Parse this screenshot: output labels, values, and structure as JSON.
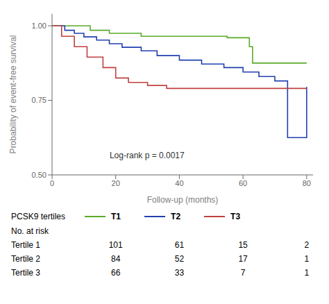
{
  "chart_data": {
    "type": "step",
    "xlabel": "Follow-up (months)",
    "ylabel": "Probability of event-free survival",
    "xlim": [
      0,
      82
    ],
    "ylim": [
      0.5,
      1.04
    ],
    "xticks": [
      0,
      20,
      40,
      60,
      80
    ],
    "yticks": [
      {
        "value": 0.5,
        "label": "0.50"
      },
      {
        "value": 0.75,
        "label": "0.75"
      },
      {
        "value": 1.0,
        "label": "1.00"
      }
    ],
    "grid": false,
    "legend": "bottom",
    "legend_title": "PCSK9 tertiles",
    "series": [
      {
        "name": "T1",
        "color": "#5aaa28",
        "x": [
          0,
          7,
          12,
          18,
          28,
          55,
          62,
          63,
          80
        ],
        "values": [
          1.0,
          1.0,
          0.985,
          0.975,
          0.965,
          0.96,
          0.93,
          0.875,
          0.875
        ]
      },
      {
        "name": "T2",
        "color": "#2040b0",
        "x": [
          0,
          4,
          7,
          10,
          14,
          18,
          22,
          28,
          33,
          40,
          47,
          54,
          60,
          65,
          70,
          73,
          74,
          80
        ],
        "values": [
          1.0,
          0.985,
          0.975,
          0.963,
          0.952,
          0.94,
          0.928,
          0.916,
          0.9,
          0.885,
          0.872,
          0.86,
          0.845,
          0.83,
          0.815,
          0.815,
          0.625,
          0.795
        ]
      },
      {
        "name": "T3",
        "color": "#c04040",
        "x": [
          0,
          3,
          7,
          11,
          16,
          20,
          24,
          30,
          36,
          80
        ],
        "values": [
          1.0,
          0.965,
          0.93,
          0.895,
          0.86,
          0.825,
          0.81,
          0.8,
          0.79,
          0.79
        ]
      }
    ],
    "annotation": {
      "text": "Log-rank p = 0.0017",
      "x": 17,
      "y": 0.565
    },
    "risk_table": {
      "header": "No. at risk",
      "times": [
        20,
        40,
        60,
        80
      ],
      "rows": [
        {
          "label": "Tertile 1",
          "values": [
            101,
            61,
            15,
            2
          ]
        },
        {
          "label": "Tertile 2",
          "values": [
            84,
            52,
            17,
            1
          ]
        },
        {
          "label": "Tertile 3",
          "values": [
            66,
            33,
            7,
            1
          ]
        }
      ]
    }
  }
}
